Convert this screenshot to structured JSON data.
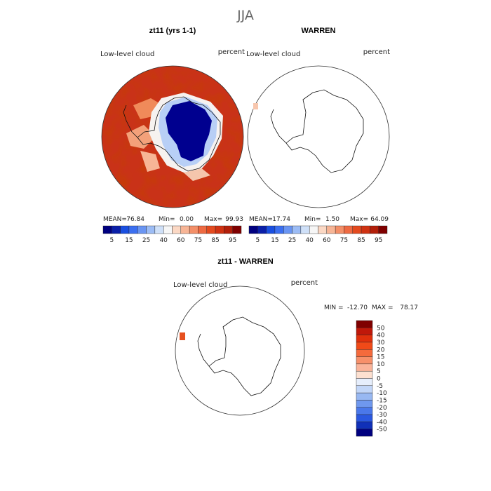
{
  "page_title": "JJA",
  "chart_data": [
    {
      "type": "heatmap",
      "title": "zt11 (yrs 1-1)",
      "variable_label": "Low-level cloud",
      "units": "percent",
      "stats": {
        "mean": "76.84",
        "min": "0.00",
        "max": "99.93"
      },
      "colorbar": {
        "tick_labels": [
          "5",
          "15",
          "25",
          "40",
          "60",
          "75",
          "85",
          "95"
        ],
        "colors": [
          "#00007f",
          "#0a1fa8",
          "#1a4fe0",
          "#3b6ff0",
          "#6a95f2",
          "#9cbcf5",
          "#cfe0f8",
          "#f6f6f6",
          "#fbd8c4",
          "#f7b596",
          "#f38f68",
          "#ee6a42",
          "#e34a1f",
          "#cf3212",
          "#b21f0a",
          "#7f0000"
        ]
      }
    },
    {
      "type": "heatmap",
      "title": "WARREN",
      "variable_label": "Low-level cloud",
      "units": "percent",
      "stats": {
        "mean": "17.74",
        "min": "1.50",
        "max": "64.09"
      },
      "colorbar": {
        "tick_labels": [
          "5",
          "15",
          "25",
          "40",
          "60",
          "75",
          "85",
          "95"
        ],
        "colors": [
          "#00007f",
          "#0a1fa8",
          "#1a4fe0",
          "#3b6ff0",
          "#6a95f2",
          "#9cbcf5",
          "#cfe0f8",
          "#f6f6f6",
          "#fbd8c4",
          "#f7b596",
          "#f38f68",
          "#ee6a42",
          "#e34a1f",
          "#cf3212",
          "#b21f0a",
          "#7f0000"
        ]
      }
    },
    {
      "type": "heatmap",
      "title": "zt11 - WARREN",
      "variable_label": "Low-level cloud",
      "units": "percent",
      "stats_text": {
        "min": "-12.70",
        "max": "78.17"
      },
      "colorbar": {
        "tick_labels": [
          "50",
          "40",
          "30",
          "20",
          "15",
          "10",
          "5",
          "0",
          "-5",
          "-10",
          "-15",
          "-20",
          "-30",
          "-40",
          "-50"
        ],
        "colors": [
          "#7f0000",
          "#c0180a",
          "#e0300c",
          "#f04a18",
          "#f56a3c",
          "#f7906a",
          "#fab49a",
          "#fde0d0",
          "#e6eefc",
          "#c2d6f8",
          "#98b8f2",
          "#6f98ee",
          "#4a78ea",
          "#2a58e0",
          "#1030b8",
          "#00007f"
        ]
      }
    }
  ]
}
